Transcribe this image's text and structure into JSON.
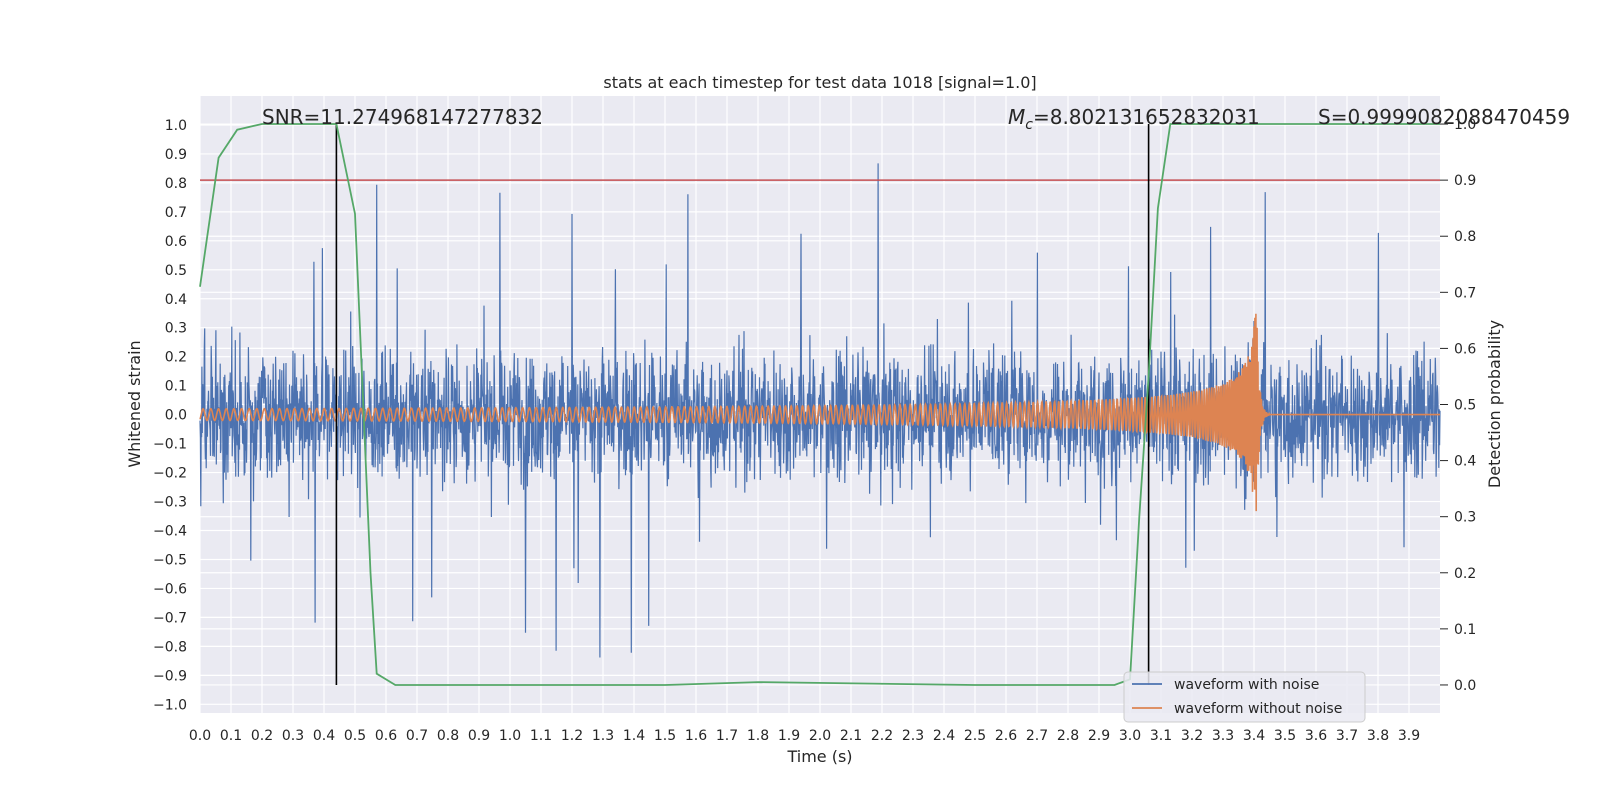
{
  "chart_data": {
    "type": "line",
    "title": "stats at each timestep for test data 1018 [signal=1.0]",
    "xlabel": "Time (s)",
    "ylabel": "Whitened strain",
    "y2label": "Detection probability",
    "xlim": [
      0.0,
      4.0
    ],
    "ylim": [
      -1.03,
      1.1
    ],
    "y2lim": [
      -0.05,
      1.05
    ],
    "xticks": [
      0.0,
      0.1,
      0.2,
      0.3,
      0.4,
      0.5,
      0.6,
      0.7,
      0.8,
      0.9,
      1.0,
      1.1,
      1.2,
      1.3,
      1.4,
      1.5,
      1.6,
      1.7,
      1.8,
      1.9,
      2.0,
      2.1,
      2.2,
      2.3,
      2.4,
      2.5,
      2.6,
      2.7,
      2.8,
      2.9,
      3.0,
      3.1,
      3.2,
      3.3,
      3.4,
      3.5,
      3.6,
      3.7,
      3.8,
      3.9
    ],
    "yticks": [
      1.0,
      0.9,
      0.8,
      0.7,
      0.6,
      0.5,
      0.4,
      0.3,
      0.2,
      0.1,
      0.0,
      -0.1,
      -0.2,
      -0.3,
      -0.4,
      -0.5,
      -0.6,
      -0.7,
      -0.8,
      -0.9,
      -1.0
    ],
    "y2ticks": [
      1.0,
      0.9,
      0.8,
      0.7,
      0.6,
      0.5,
      0.4,
      0.3,
      0.2,
      0.1,
      0.0
    ],
    "annotations": {
      "snr": "SNR=11.274968147277832",
      "mc_symbol": "M",
      "mc_sub": "c",
      "mc_value": "=8.802131652832031",
      "s": "S=0.9999082088470459"
    },
    "threshold_y2": 0.9,
    "vlines_x": [
      0.44,
      3.06
    ],
    "series": [
      {
        "name": "waveform with noise",
        "color": "#4c72b0",
        "notes": "noisy whitened strain, amplitude mostly within about -0.45 to 0.7, peaks near 1.0"
      },
      {
        "name": "waveform without noise",
        "color": "#dd8452",
        "notes": "chirp signal growing in amplitude and frequency, merging near 3.4 s with peak about 0.36"
      },
      {
        "name": "detection probability",
        "color": "#55a868",
        "axis": "right",
        "x": [
          0.0,
          0.06,
          0.12,
          0.2,
          0.3,
          0.44,
          0.5,
          0.55,
          0.57,
          0.63,
          0.75,
          1.0,
          1.5,
          1.8,
          2.5,
          2.95,
          3.0,
          3.03,
          3.06,
          3.09,
          3.13,
          3.5,
          4.0
        ],
        "y": [
          0.71,
          0.94,
          0.99,
          1.0,
          1.0,
          1.0,
          0.84,
          0.2,
          0.02,
          0.0,
          0.0,
          0.0,
          0.0,
          0.005,
          0.0,
          0.0,
          0.01,
          0.3,
          0.55,
          0.85,
          1.0,
          1.0,
          1.0
        ]
      }
    ]
  }
}
